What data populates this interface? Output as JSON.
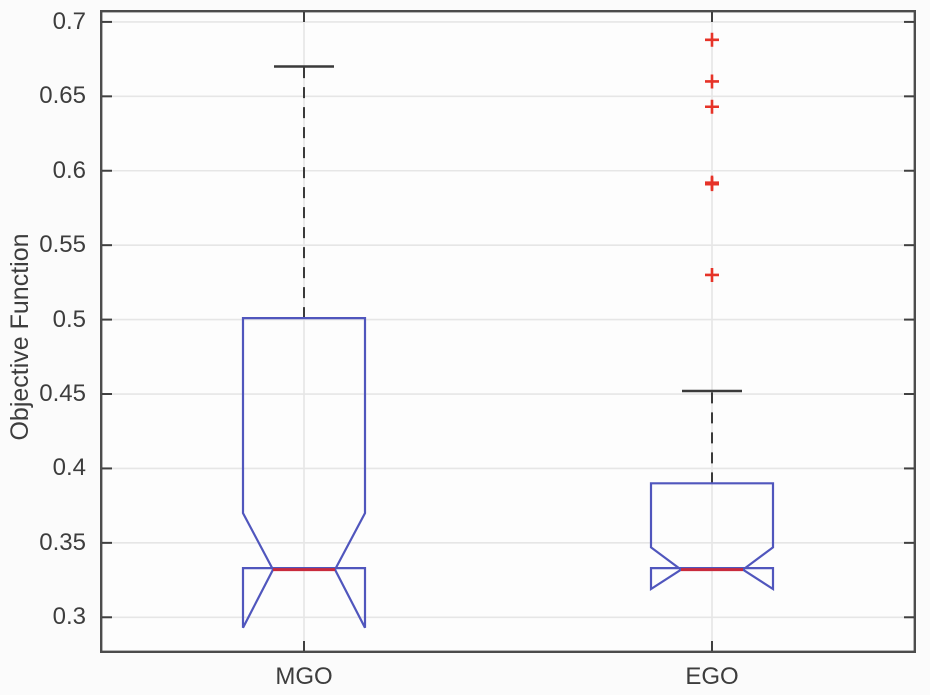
{
  "chart_data": {
    "type": "boxplot",
    "title": "",
    "xlabel": "",
    "ylabel": "Objective Function",
    "categories": [
      "MGO",
      "EGO"
    ],
    "ylim": [
      0.276,
      0.708
    ],
    "yticks": [
      0.3,
      0.35,
      0.4,
      0.45,
      0.5,
      0.55,
      0.6,
      0.65,
      0.7
    ],
    "grid": true,
    "notched": true,
    "series": [
      {
        "label": "MGO",
        "median": 0.332,
        "q1": 0.333,
        "q3": 0.501,
        "notch_low": 0.293,
        "notch_high": 0.37,
        "whisker_low": 0.333,
        "whisker_high": 0.67,
        "outliers": []
      },
      {
        "label": "EGO",
        "median": 0.332,
        "q1": 0.333,
        "q3": 0.39,
        "notch_low": 0.319,
        "notch_high": 0.347,
        "whisker_low": 0.333,
        "whisker_high": 0.452,
        "outliers": [
          0.688,
          0.66,
          0.643,
          0.592,
          0.591,
          0.53
        ]
      }
    ],
    "colors": {
      "box": "#5056bd",
      "median": "#c92b3c",
      "outlier": "#e63328",
      "whisker": "#3a3a3a",
      "axis": "#4c4c4c",
      "grid": "#e6e6e6",
      "text": "#3d3d3d",
      "background": "#fbfbfb",
      "plot_background": "#fdfdfd"
    }
  }
}
